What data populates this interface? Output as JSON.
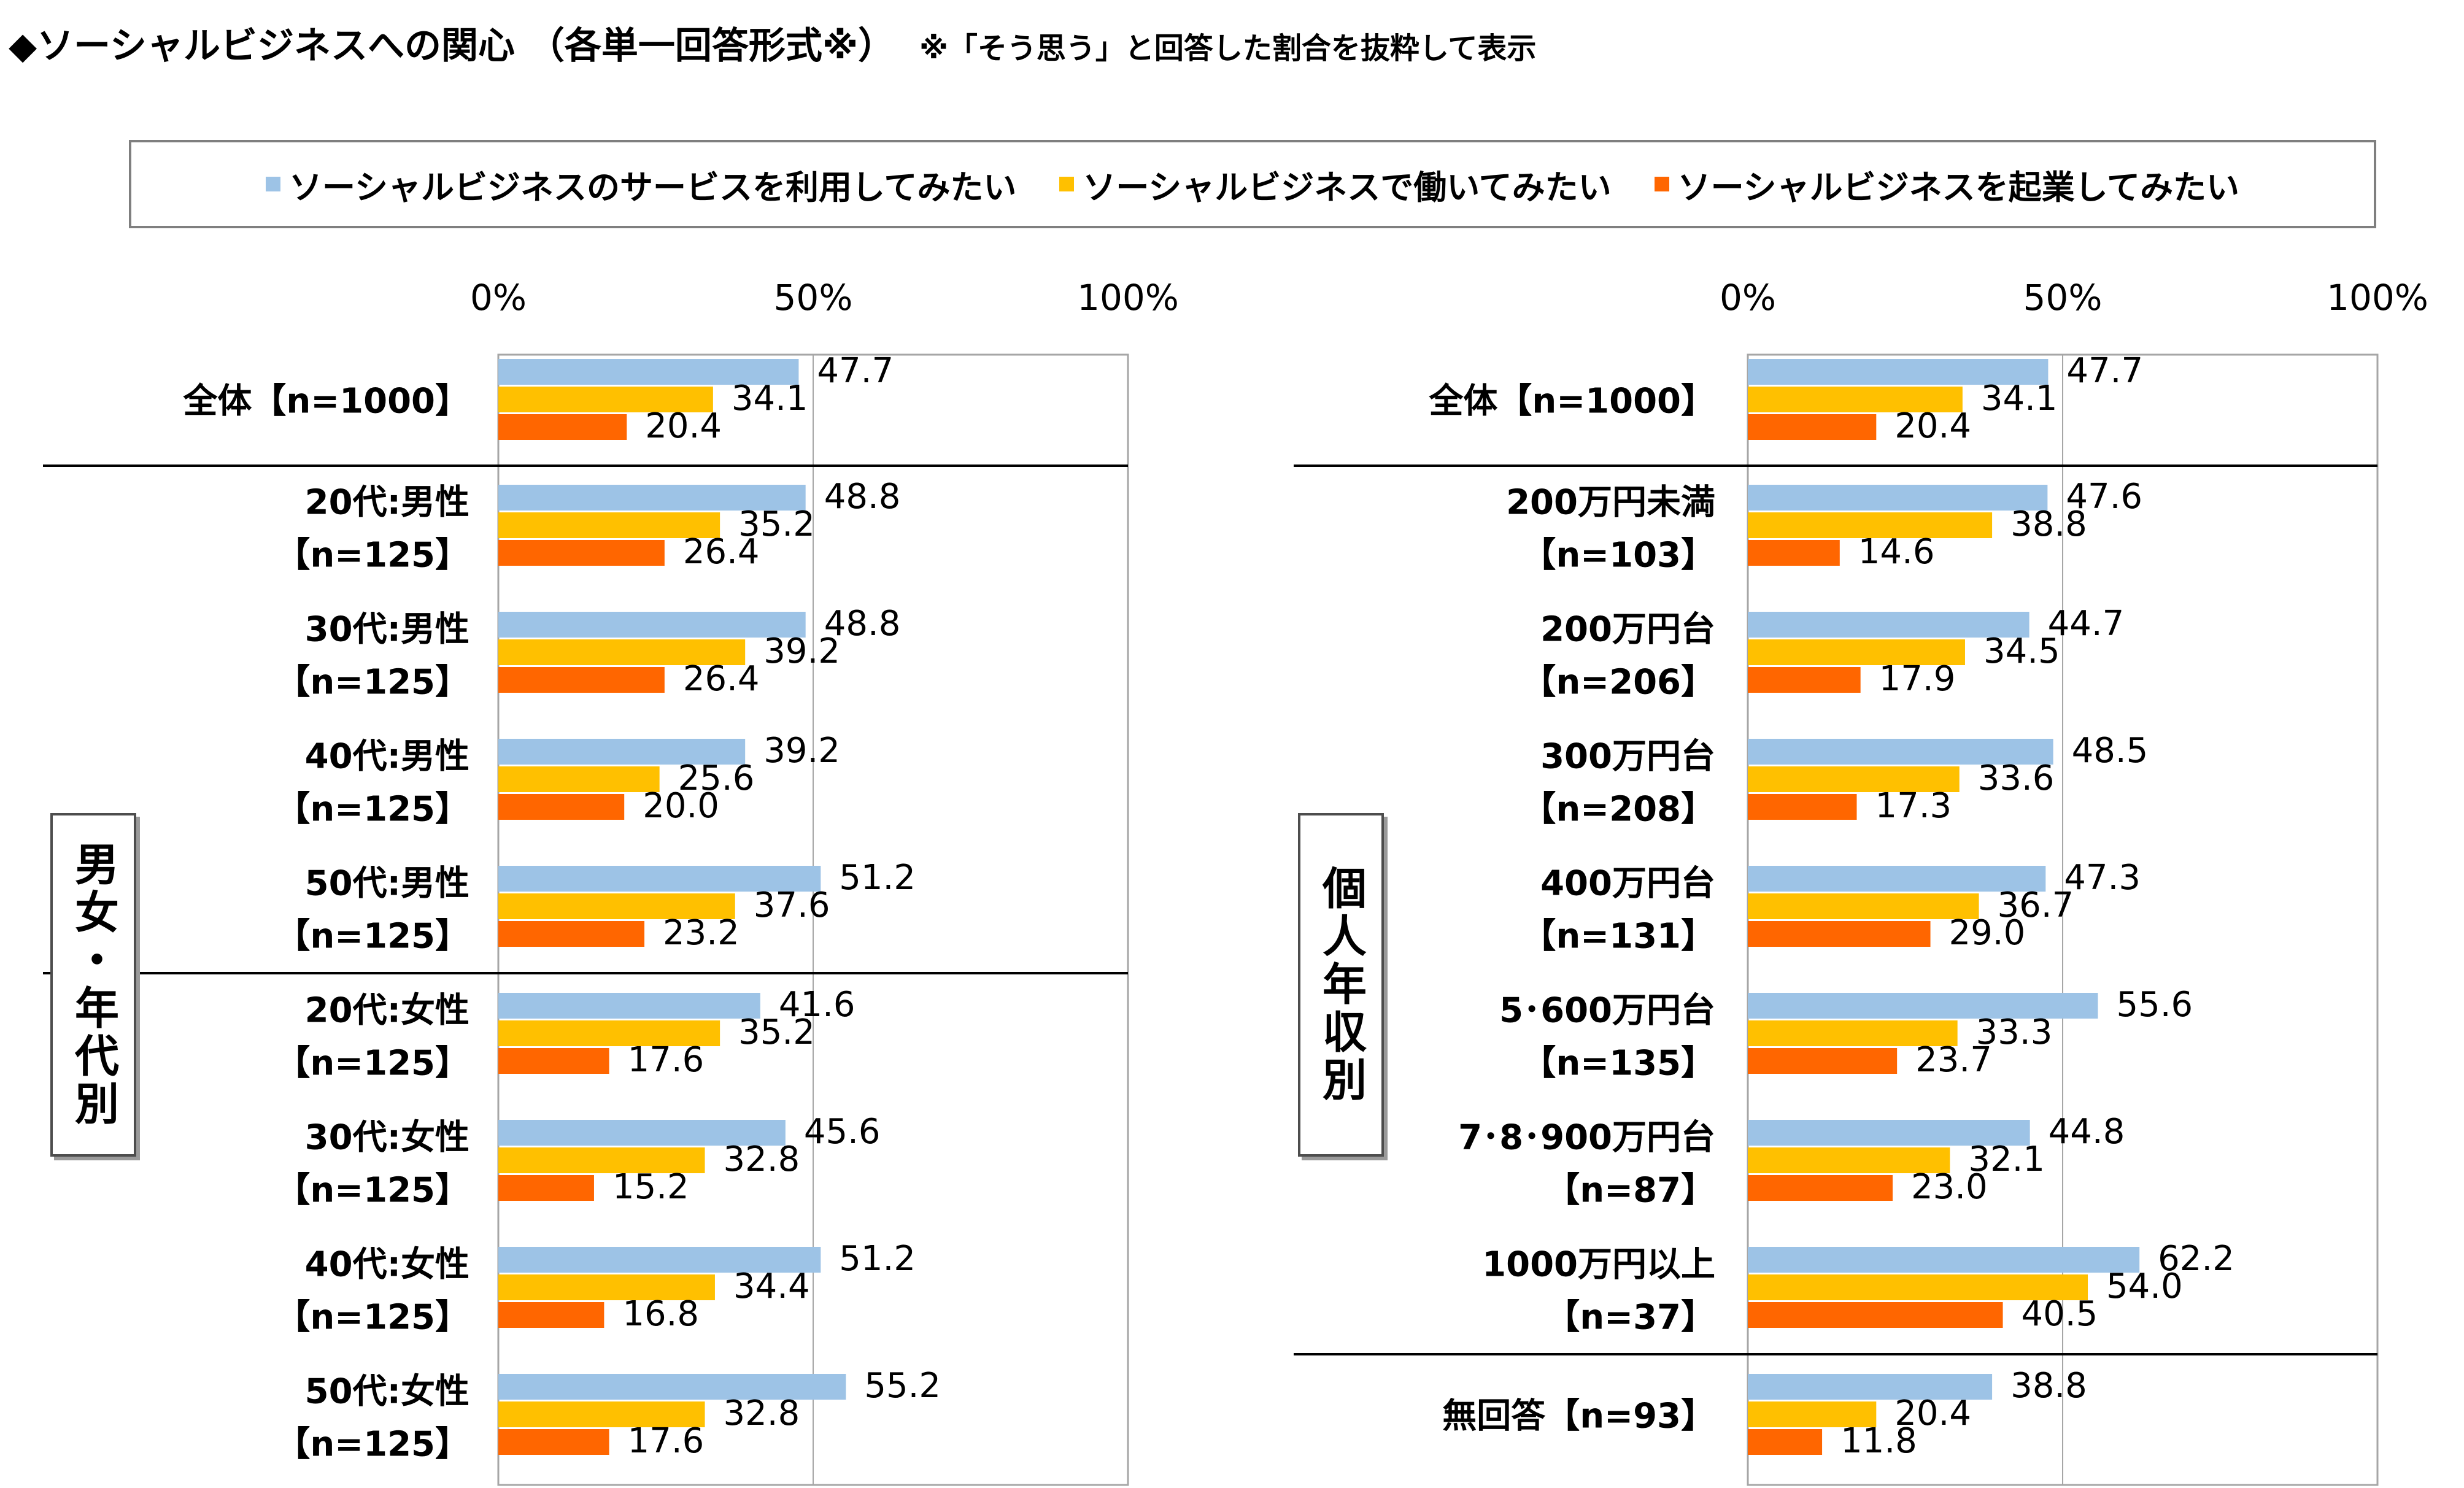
{
  "title": "◆ソーシャルビジネスへの関心 （各単一回答形式※）",
  "title_note": "※「そう思う」と回答した割合を抜粋して表示",
  "colors": {
    "series_1": "#9dc3e6",
    "series_2": "#ffc000",
    "series_3": "#ff6600",
    "grid": "#a6a6a6",
    "separator": "#000000"
  },
  "legend": [
    {
      "label": "ソーシャルビジネスのサービスを利用してみたい"
    },
    {
      "label": "ソーシャルビジネスで働いてみたい"
    },
    {
      "label": "ソーシャルビジネスを起業してみたい"
    }
  ],
  "chart_data": [
    {
      "type": "bar",
      "orientation": "horizontal",
      "section_label": "男女・年代別",
      "xlim": [
        0,
        100
      ],
      "x_ticks": [
        "0%",
        "50%",
        "100%"
      ],
      "series_names": [
        "ソーシャルビジネスのサービスを利用してみたい",
        "ソーシャルビジネスで働いてみたい",
        "ソーシャルビジネスを起業してみたい"
      ],
      "categories": [
        {
          "label": [
            "全体【n=1000】"
          ],
          "values": [
            47.7,
            34.1,
            20.4
          ]
        },
        {
          "label": [
            "20代:男性",
            "【n=125】"
          ],
          "values": [
            48.8,
            35.2,
            26.4
          ]
        },
        {
          "label": [
            "30代:男性",
            "【n=125】"
          ],
          "values": [
            48.8,
            39.2,
            26.4
          ]
        },
        {
          "label": [
            "40代:男性",
            "【n=125】"
          ],
          "values": [
            39.2,
            25.6,
            20.0
          ]
        },
        {
          "label": [
            "50代:男性",
            "【n=125】"
          ],
          "values": [
            51.2,
            37.6,
            23.2
          ]
        },
        {
          "label": [
            "20代:女性",
            "【n=125】"
          ],
          "values": [
            41.6,
            35.2,
            17.6
          ]
        },
        {
          "label": [
            "30代:女性",
            "【n=125】"
          ],
          "values": [
            45.6,
            32.8,
            15.2
          ]
        },
        {
          "label": [
            "40代:女性",
            "【n=125】"
          ],
          "values": [
            51.2,
            34.4,
            16.8
          ]
        },
        {
          "label": [
            "50代:女性",
            "【n=125】"
          ],
          "values": [
            55.2,
            32.8,
            17.6
          ]
        }
      ]
    },
    {
      "type": "bar",
      "orientation": "horizontal",
      "section_label": "個人年収別",
      "xlim": [
        0,
        100
      ],
      "x_ticks": [
        "0%",
        "50%",
        "100%"
      ],
      "series_names": [
        "ソーシャルビジネスのサービスを利用してみたい",
        "ソーシャルビジネスで働いてみたい",
        "ソーシャルビジネスを起業してみたい"
      ],
      "categories": [
        {
          "label": [
            "全体【n=1000】"
          ],
          "values": [
            47.7,
            34.1,
            20.4
          ]
        },
        {
          "label": [
            "200万円未満",
            "【n=103】"
          ],
          "values": [
            47.6,
            38.8,
            14.6
          ]
        },
        {
          "label": [
            "200万円台",
            "【n=206】"
          ],
          "values": [
            44.7,
            34.5,
            17.9
          ]
        },
        {
          "label": [
            "300万円台",
            "【n=208】"
          ],
          "values": [
            48.5,
            33.6,
            17.3
          ]
        },
        {
          "label": [
            "400万円台",
            "【n=131】"
          ],
          "values": [
            47.3,
            36.7,
            29.0
          ]
        },
        {
          "label": [
            "5･600万円台",
            "【n=135】"
          ],
          "values": [
            55.6,
            33.3,
            23.7
          ]
        },
        {
          "label": [
            "7･8･900万円台",
            "【n=87】"
          ],
          "values": [
            44.8,
            32.1,
            23.0
          ]
        },
        {
          "label": [
            "1000万円以上",
            "【n=37】"
          ],
          "values": [
            62.2,
            54.0,
            40.5
          ]
        },
        {
          "label": [
            "無回答【n=93】"
          ],
          "values": [
            38.8,
            20.4,
            11.8
          ]
        }
      ]
    }
  ]
}
